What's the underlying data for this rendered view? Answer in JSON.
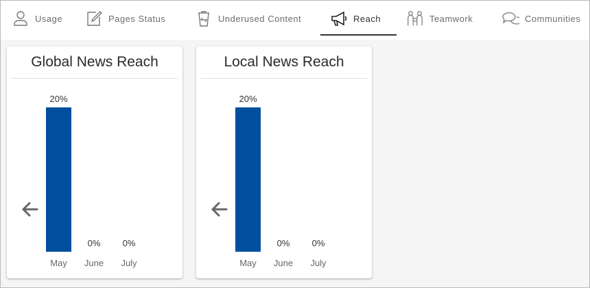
{
  "tabs": [
    {
      "label": "Usage",
      "icon": "user-icon",
      "active": false
    },
    {
      "label": "Pages Status",
      "icon": "pencil-edit-icon",
      "active": false
    },
    {
      "label": "Underused Content",
      "icon": "trash-recycle-icon",
      "active": false
    },
    {
      "label": "Reach",
      "icon": "megaphone-icon",
      "active": true
    },
    {
      "label": "Teamwork",
      "icon": "teamwork-people-icon",
      "active": false
    },
    {
      "label": "Communities",
      "icon": "chat-bubbles-icon",
      "active": false
    }
  ],
  "colors": {
    "bar": "#004f9e",
    "tab_active_underline": "#333333",
    "arrow": "#666666"
  },
  "chart_data": [
    {
      "type": "bar",
      "title": "Global News Reach",
      "categories": [
        "May",
        "June",
        "July"
      ],
      "values": [
        20,
        0,
        0
      ],
      "value_labels": [
        "20%",
        "0%",
        "0%"
      ],
      "unit": "%",
      "ylim": [
        0,
        20
      ],
      "grid": false,
      "legend": "none"
    },
    {
      "type": "bar",
      "title": "Local News Reach",
      "categories": [
        "May",
        "June",
        "July"
      ],
      "values": [
        20,
        0,
        0
      ],
      "value_labels": [
        "20%",
        "0%",
        "0%"
      ],
      "unit": "%",
      "ylim": [
        0,
        20
      ],
      "grid": false,
      "legend": "none"
    }
  ]
}
